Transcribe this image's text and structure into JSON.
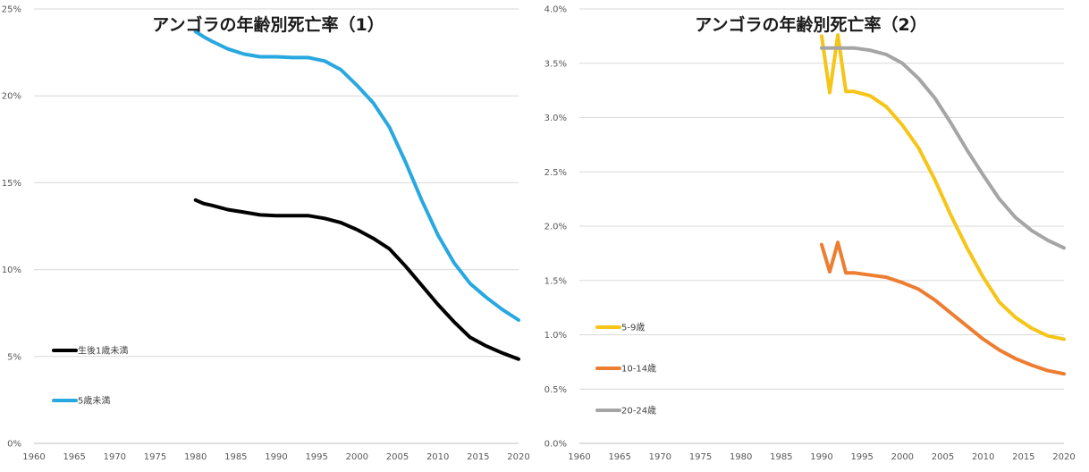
{
  "chart_data": [
    {
      "type": "line",
      "title": "アンゴラの年齢別死亡率（1）",
      "xlim": [
        1960,
        2020
      ],
      "x_ticks": [
        "1960",
        "1965",
        "1970",
        "1975",
        "1980",
        "1985",
        "1990",
        "1995",
        "2000",
        "2005",
        "2010",
        "2015",
        "2020"
      ],
      "ylim": [
        0,
        25
      ],
      "y_ticks": [
        "0%",
        "5%",
        "10%",
        "15%",
        "20%",
        "25%"
      ],
      "series": [
        {
          "name": "生後1歳未満",
          "color": "#000000",
          "x": [
            1980,
            1981,
            1982,
            1984,
            1986,
            1988,
            1990,
            1992,
            1994,
            1996,
            1998,
            2000,
            2002,
            2004,
            2006,
            2008,
            2010,
            2012,
            2014,
            2016,
            2018,
            2020
          ],
          "values": [
            14.0,
            13.8,
            13.7,
            13.45,
            13.3,
            13.15,
            13.1,
            13.1,
            13.1,
            12.95,
            12.7,
            12.3,
            11.8,
            11.2,
            10.2,
            9.1,
            8.0,
            7.0,
            6.1,
            5.6,
            5.2,
            4.85
          ]
        },
        {
          "name": "5歳未満",
          "color": "#29a8e0",
          "x": [
            1980,
            1981,
            1982,
            1984,
            1986,
            1988,
            1990,
            1992,
            1994,
            1996,
            1998,
            2000,
            2002,
            2004,
            2006,
            2008,
            2010,
            2012,
            2014,
            2016,
            2018,
            2020
          ],
          "values": [
            23.7,
            23.4,
            23.15,
            22.7,
            22.4,
            22.25,
            22.25,
            22.2,
            22.2,
            22.0,
            21.5,
            20.6,
            19.6,
            18.2,
            16.2,
            14.0,
            12.0,
            10.4,
            9.2,
            8.4,
            7.7,
            7.1
          ]
        }
      ]
    },
    {
      "type": "line",
      "title": "アンゴラの年齢別死亡率（2）",
      "xlim": [
        1960,
        2020
      ],
      "x_ticks": [
        "1960",
        "1965",
        "1970",
        "1975",
        "1980",
        "1985",
        "1990",
        "1995",
        "2000",
        "2005",
        "2010",
        "2015",
        "2020"
      ],
      "ylim": [
        0,
        4
      ],
      "y_ticks": [
        "0.0%",
        "0.5%",
        "1.0%",
        "1.5%",
        "2.0%",
        "2.5%",
        "3.0%",
        "3.5%",
        "4.0%"
      ],
      "series": [
        {
          "name": "5-9歳",
          "color": "#f5c518",
          "x": [
            1990,
            1991,
            1992,
            1993,
            1994,
            1996,
            1998,
            2000,
            2002,
            2004,
            2006,
            2008,
            2010,
            2012,
            2014,
            2016,
            2018,
            2020
          ],
          "values": [
            3.75,
            3.23,
            3.76,
            3.24,
            3.24,
            3.2,
            3.1,
            2.93,
            2.72,
            2.43,
            2.1,
            1.8,
            1.53,
            1.3,
            1.16,
            1.06,
            0.99,
            0.96
          ]
        },
        {
          "name": "10-14歳",
          "color": "#ed7d31",
          "x": [
            1990,
            1991,
            1992,
            1993,
            1994,
            1996,
            1998,
            2000,
            2002,
            2004,
            2006,
            2008,
            2010,
            2012,
            2014,
            2016,
            2018,
            2020
          ],
          "values": [
            1.83,
            1.58,
            1.85,
            1.57,
            1.57,
            1.55,
            1.53,
            1.48,
            1.42,
            1.32,
            1.2,
            1.08,
            0.96,
            0.86,
            0.78,
            0.72,
            0.67,
            0.64
          ]
        },
        {
          "name": "20-24歳",
          "color": "#a5a5a5",
          "x": [
            1990,
            1991,
            1992,
            1993,
            1994,
            1996,
            1998,
            2000,
            2002,
            2004,
            2006,
            2008,
            2010,
            2012,
            2014,
            2016,
            2018,
            2020
          ],
          "values": [
            3.64,
            3.64,
            3.64,
            3.64,
            3.64,
            3.62,
            3.58,
            3.5,
            3.36,
            3.18,
            2.95,
            2.7,
            2.47,
            2.25,
            2.08,
            1.96,
            1.87,
            1.8
          ]
        }
      ]
    }
  ]
}
